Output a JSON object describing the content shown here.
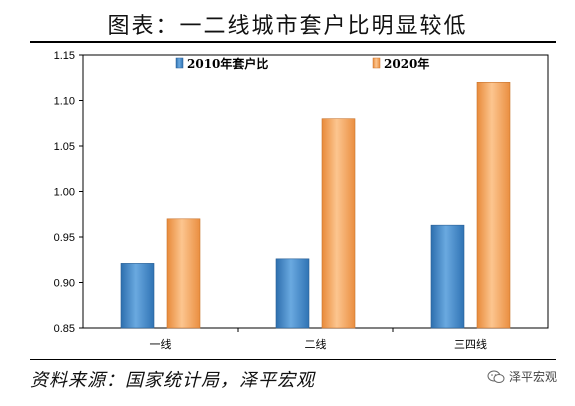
{
  "title": "图表：一二线城市套户比明显较低",
  "source": "资料来源：国家统计局，泽平宏观",
  "watermark": "泽平宏观",
  "chart_data": {
    "type": "bar",
    "categories": [
      "一线",
      "二线",
      "三四线"
    ],
    "series": [
      {
        "name": "2010年套户比",
        "values": [
          0.921,
          0.926,
          0.963
        ],
        "color": "#3f86c8"
      },
      {
        "name": "2020年",
        "values": [
          0.97,
          1.08,
          1.12
        ],
        "color": "#f5a25d"
      }
    ],
    "ylim": [
      0.85,
      1.15
    ],
    "yticks": [
      "0.85",
      "0.90",
      "0.95",
      "1.00",
      "1.05",
      "1.10",
      "1.15"
    ],
    "legend_position": "top",
    "grid": false
  }
}
